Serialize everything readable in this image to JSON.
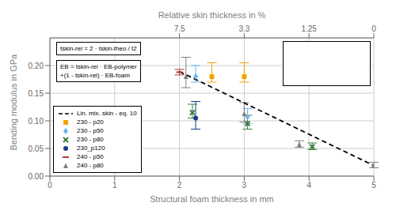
{
  "chart_data": {
    "type": "scatter",
    "xlabel": "Structural foam thickness in mm",
    "ylabel": "Bending modulus in GPa",
    "x2label": "Relative skin thickness in %",
    "xlim": [
      0,
      5
    ],
    "ylim": [
      0,
      0.25
    ],
    "xticks": [
      0,
      1,
      2,
      3,
      4,
      5
    ],
    "yticks": [
      {
        "value": 0,
        "label": "0.00"
      },
      {
        "value": 0.05,
        "label": "0.05"
      },
      {
        "value": 0.1,
        "label": "0.10"
      },
      {
        "value": 0.15,
        "label": "0.15"
      },
      {
        "value": 0.2,
        "label": "0.20"
      }
    ],
    "x2ticks": [
      {
        "value": 2.0,
        "label": "7.5"
      },
      {
        "value": 3.0,
        "label": "3.3"
      },
      {
        "value": 4.0,
        "label": "1.25"
      },
      {
        "value": 5.0,
        "label": "0"
      }
    ],
    "grid": true,
    "legend": "lower left",
    "annotations": [
      "tskin-rel = 2 · tskin-theo / t2",
      "EB = tskin-rel · EB-polymer",
      "+(1 - tskin-rel) · EB-foam"
    ],
    "series": [
      {
        "name": "Lin. mix. skin - eq. 10",
        "type": "line",
        "line_style": "dashed",
        "color": "#000000",
        "x": [
          2.0,
          5.0
        ],
        "values": [
          0.189,
          0.019
        ]
      },
      {
        "name": "230 - p20",
        "type": "scatter",
        "marker": "square",
        "color": "#f0a500",
        "x": [
          2.5,
          3.0
        ],
        "values": [
          0.18,
          0.18
        ],
        "error_up": [
          0.025,
          0.025
        ],
        "error_down": [
          0.01,
          0.01
        ]
      },
      {
        "name": "230 - p50",
        "type": "scatter",
        "marker": "diamond",
        "color": "#6ab4f5",
        "x": [
          2.25,
          3.05
        ],
        "values": [
          0.18,
          0.107
        ],
        "error_up": [
          0.02,
          0.015
        ],
        "error_down": [
          0.01,
          0.012
        ]
      },
      {
        "name": "230 - p80",
        "type": "scatter",
        "marker": "x",
        "color": "#3a7d3a",
        "x": [
          2.2,
          3.05,
          4.05
        ],
        "values": [
          0.115,
          0.095,
          0.053
        ],
        "error_up": [
          0.015,
          0.015,
          0.007
        ],
        "error_down": [
          0.01,
          0.01,
          0.005
        ]
      },
      {
        "name": "230_p120",
        "type": "scatter",
        "marker": "circle",
        "color": "#1a3a8a",
        "x": [
          2.25
        ],
        "values": [
          0.105
        ],
        "error_up": [
          0.03
        ],
        "error_down": [
          0.02
        ]
      },
      {
        "name": "240 - p50",
        "type": "scatter",
        "marker": "hline",
        "color": "#b03a2e",
        "x": [
          2.0
        ],
        "values": [
          0.188
        ],
        "error_up": [
          0.005
        ],
        "error_down": [
          0.005
        ]
      },
      {
        "name": "240 - p80",
        "type": "scatter",
        "marker": "triangle",
        "color": "#808080",
        "x": [
          2.1,
          3.0,
          3.85,
          5.0
        ],
        "values": [
          0.18,
          0.113,
          0.057,
          0.02
        ],
        "error_up": [
          0.035,
          0.02,
          0.007,
          0.005
        ],
        "error_down": [
          0.02,
          0.015,
          0.005,
          0.005
        ]
      }
    ]
  }
}
